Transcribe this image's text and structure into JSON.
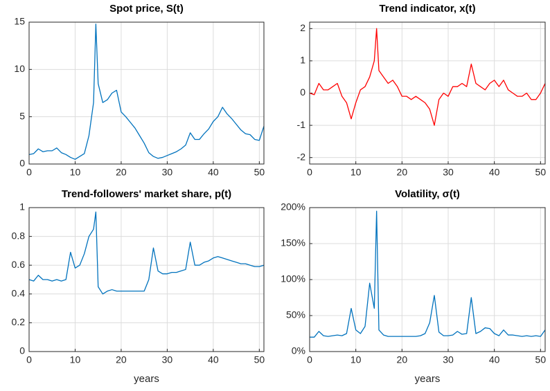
{
  "chart_data": [
    {
      "type": "line",
      "title": "Spot price, S(t)",
      "x": [
        0,
        1,
        2,
        3,
        4,
        5,
        6,
        7,
        8,
        9,
        10,
        11,
        12,
        13,
        14,
        14.5,
        15,
        16,
        17,
        18,
        19,
        20,
        21,
        22,
        23,
        24,
        25,
        26,
        27,
        28,
        29,
        30,
        31,
        32,
        33,
        34,
        35,
        36,
        37,
        38,
        39,
        40,
        41,
        42,
        43,
        44,
        45,
        46,
        47,
        48,
        49,
        50,
        51
      ],
      "series": [
        {
          "color": "#0072bd",
          "values": [
            1.0,
            1.1,
            1.6,
            1.3,
            1.4,
            1.4,
            1.7,
            1.2,
            1.0,
            0.7,
            0.5,
            0.8,
            1.1,
            3.0,
            6.5,
            14.8,
            8.5,
            6.5,
            6.8,
            7.5,
            7.8,
            5.5,
            5.0,
            4.4,
            3.8,
            3.0,
            2.2,
            1.2,
            0.8,
            0.6,
            0.7,
            0.9,
            1.1,
            1.3,
            1.6,
            2.0,
            3.3,
            2.6,
            2.6,
            3.2,
            3.7,
            4.5,
            5.0,
            6.0,
            5.3,
            4.8,
            4.2,
            3.6,
            3.2,
            3.1,
            2.6,
            2.5,
            4.0
          ]
        }
      ],
      "xlim": [
        0,
        51
      ],
      "xticks": [
        0,
        10,
        20,
        30,
        40,
        50
      ],
      "ylim": [
        0,
        15
      ],
      "yticks": [
        0,
        5,
        10,
        15
      ],
      "grid": true
    },
    {
      "type": "line",
      "title": "Trend indicator, x(t)",
      "x": [
        0,
        1,
        2,
        3,
        4,
        5,
        6,
        7,
        8,
        9,
        10,
        11,
        12,
        13,
        14,
        14.5,
        15,
        16,
        17,
        18,
        19,
        20,
        21,
        22,
        23,
        24,
        25,
        26,
        27,
        28,
        29,
        30,
        31,
        32,
        33,
        34,
        35,
        36,
        37,
        38,
        39,
        40,
        41,
        42,
        43,
        44,
        45,
        46,
        47,
        48,
        49,
        50,
        51
      ],
      "series": [
        {
          "color": "#ff0000",
          "values": [
            0,
            -0.05,
            0.3,
            0.1,
            0.1,
            0.2,
            0.3,
            -0.1,
            -0.3,
            -0.8,
            -0.3,
            0.1,
            0.2,
            0.5,
            1.0,
            2.0,
            0.7,
            0.5,
            0.3,
            0.4,
            0.2,
            -0.1,
            -0.1,
            -0.2,
            -0.1,
            -0.2,
            -0.3,
            -0.5,
            -1.0,
            -0.2,
            0.0,
            -0.1,
            0.2,
            0.2,
            0.3,
            0.2,
            0.9,
            0.3,
            0.2,
            0.1,
            0.3,
            0.4,
            0.2,
            0.4,
            0.1,
            0.0,
            -0.1,
            -0.1,
            0.0,
            -0.2,
            -0.2,
            0.0,
            0.3
          ]
        }
      ],
      "xlim": [
        0,
        51
      ],
      "xticks": [
        0,
        10,
        20,
        30,
        40,
        50
      ],
      "ylim": [
        -2.2,
        2.2
      ],
      "yticks": [
        -2,
        -1,
        0,
        1,
        2
      ],
      "grid": true
    },
    {
      "type": "line",
      "title": "Trend-followers' market share, p(t)",
      "xlabel": "years",
      "x": [
        0,
        1,
        2,
        3,
        4,
        5,
        6,
        7,
        8,
        9,
        10,
        11,
        12,
        13,
        14,
        14.5,
        15,
        16,
        17,
        18,
        19,
        20,
        21,
        22,
        23,
        24,
        25,
        26,
        27,
        28,
        29,
        30,
        31,
        32,
        33,
        34,
        35,
        36,
        37,
        38,
        39,
        40,
        41,
        42,
        43,
        44,
        45,
        46,
        47,
        48,
        49,
        50,
        51
      ],
      "series": [
        {
          "color": "#0072bd",
          "values": [
            0.5,
            0.49,
            0.53,
            0.5,
            0.5,
            0.49,
            0.5,
            0.49,
            0.5,
            0.69,
            0.58,
            0.6,
            0.68,
            0.8,
            0.85,
            0.97,
            0.45,
            0.4,
            0.42,
            0.43,
            0.42,
            0.42,
            0.42,
            0.42,
            0.42,
            0.42,
            0.42,
            0.5,
            0.72,
            0.56,
            0.54,
            0.54,
            0.55,
            0.55,
            0.56,
            0.57,
            0.76,
            0.6,
            0.6,
            0.62,
            0.63,
            0.65,
            0.66,
            0.65,
            0.64,
            0.63,
            0.62,
            0.61,
            0.61,
            0.6,
            0.59,
            0.59,
            0.6
          ]
        }
      ],
      "xlim": [
        0,
        51
      ],
      "xticks": [
        0,
        10,
        20,
        30,
        40,
        50
      ],
      "ylim": [
        0,
        1
      ],
      "yticks": [
        0,
        0.2,
        0.4,
        0.6,
        0.8,
        1
      ],
      "grid": true
    },
    {
      "type": "line",
      "title": "Volatility, σ(t)",
      "xlabel": "years",
      "x": [
        0,
        1,
        2,
        3,
        4,
        5,
        6,
        7,
        8,
        9,
        10,
        11,
        12,
        13,
        14,
        14.5,
        15,
        16,
        17,
        18,
        19,
        20,
        21,
        22,
        23,
        24,
        25,
        26,
        27,
        28,
        29,
        30,
        31,
        32,
        33,
        34,
        35,
        36,
        37,
        38,
        39,
        40,
        41,
        42,
        43,
        44,
        45,
        46,
        47,
        48,
        49,
        50,
        51
      ],
      "series": [
        {
          "color": "#0072bd",
          "values": [
            20,
            20,
            28,
            22,
            21,
            22,
            23,
            22,
            25,
            60,
            30,
            25,
            35,
            95,
            60,
            195,
            30,
            23,
            21,
            21,
            21,
            21,
            21,
            21,
            21,
            22,
            25,
            40,
            78,
            27,
            22,
            22,
            23,
            28,
            24,
            25,
            75,
            25,
            28,
            33,
            32,
            25,
            22,
            30,
            23,
            23,
            22,
            21,
            22,
            21,
            22,
            21,
            30
          ]
        }
      ],
      "xlim": [
        0,
        51
      ],
      "xticks": [
        0,
        10,
        20,
        30,
        40,
        50
      ],
      "ylim": [
        0,
        200
      ],
      "yticks": [
        {
          "value": 0,
          "label": "0%"
        },
        {
          "value": 50,
          "label": "50%"
        },
        {
          "value": 100,
          "label": "100%"
        },
        {
          "value": 150,
          "label": "150%"
        },
        {
          "value": 200,
          "label": "200%"
        }
      ],
      "grid": true
    }
  ]
}
